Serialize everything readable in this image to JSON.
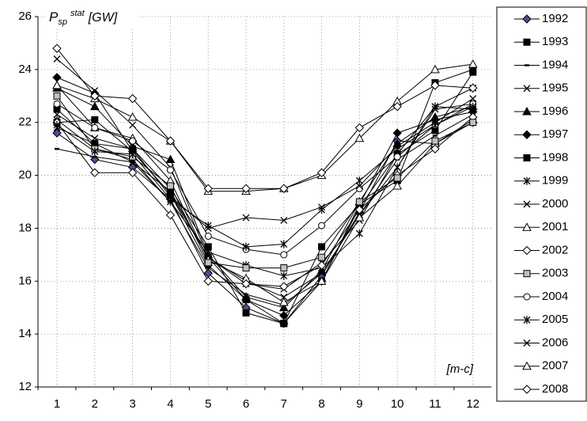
{
  "chart_data": {
    "type": "line",
    "ylabel": {
      "symbol": "P",
      "subscript": "sp",
      "superscript": "stat",
      "unit": "[GW]"
    },
    "annotation": "[m-c]",
    "categories": [
      "1",
      "2",
      "3",
      "4",
      "5",
      "6",
      "7",
      "8",
      "9",
      "10",
      "11",
      "12"
    ],
    "ylim": [
      12,
      26
    ],
    "yticks": [
      12,
      14,
      16,
      18,
      20,
      22,
      24,
      26
    ],
    "grid": true,
    "legend": "right",
    "series": [
      {
        "name": "1992",
        "color": "#000000",
        "marker": "diamond",
        "marker_fill": "#4d4d99",
        "values": [
          21.6,
          20.6,
          20.3,
          19.1,
          16.3,
          15.0,
          14.4,
          16.2,
          18.6,
          21.3,
          21.2,
          22.0
        ]
      },
      {
        "name": "1993",
        "color": "#000000",
        "marker": "square",
        "marker_fill": "#000000",
        "values": [
          22.0,
          22.1,
          20.9,
          19.3,
          16.9,
          15.3,
          14.4,
          16.0,
          18.8,
          20.8,
          21.7,
          23.9
        ]
      },
      {
        "name": "1994",
        "color": "#000000",
        "marker": "dash",
        "marker_fill": "#000000",
        "values": [
          21.0,
          20.7,
          20.5,
          19.0,
          16.5,
          15.5,
          15.1,
          16.3,
          18.5,
          20.6,
          21.5,
          22.3
        ]
      },
      {
        "name": "1995",
        "color": "#000000",
        "marker": "x",
        "marker_fill": "#000000",
        "values": [
          24.4,
          23.2,
          21.9,
          20.3,
          16.9,
          15.9,
          15.7,
          16.7,
          18.3,
          20.8,
          22.6,
          23.3
        ]
      },
      {
        "name": "1996",
        "color": "#000000",
        "marker": "triangle",
        "marker_fill": "#000000",
        "values": [
          23.3,
          22.6,
          21.1,
          20.6,
          17.0,
          15.4,
          15.0,
          16.4,
          19.0,
          21.2,
          22.2,
          22.6
        ]
      },
      {
        "name": "1997",
        "color": "#000000",
        "marker": "diamond",
        "marker_fill": "#000000",
        "values": [
          23.7,
          23.1,
          20.9,
          19.3,
          16.6,
          15.3,
          14.7,
          16.0,
          18.9,
          21.6,
          22.1,
          22.4
        ]
      },
      {
        "name": "1998",
        "color": "#000000",
        "marker": "square",
        "marker_fill": "#000000",
        "values": [
          22.5,
          21.2,
          21.0,
          19.5,
          17.3,
          14.8,
          14.4,
          17.3,
          18.9,
          19.8,
          23.5,
          24.0
        ]
      },
      {
        "name": "1999",
        "color": "#000000",
        "marker": "star",
        "marker_fill": "#000000",
        "values": [
          22.1,
          21.0,
          20.6,
          19.0,
          17.1,
          16.6,
          16.2,
          16.5,
          17.8,
          20.3,
          22.6,
          22.5
        ]
      },
      {
        "name": "2000",
        "color": "#000000",
        "marker": "x",
        "marker_fill": "#000000",
        "values": [
          21.8,
          21.2,
          20.5,
          19.4,
          16.9,
          16.0,
          15.4,
          16.3,
          18.5,
          20.3,
          22.5,
          22.7
        ]
      },
      {
        "name": "2001",
        "color": "#000000",
        "marker": "triangle",
        "marker_fill": "#ffffff",
        "values": [
          23.4,
          21.8,
          21.4,
          19.8,
          16.8,
          16.1,
          15.2,
          16.0,
          18.4,
          19.6,
          21.2,
          22.1
        ]
      },
      {
        "name": "2002",
        "color": "#000000",
        "marker": "diamond",
        "marker_fill": "#ffffff",
        "values": [
          22.0,
          20.1,
          20.1,
          18.5,
          16.0,
          15.9,
          15.8,
          16.6,
          18.7,
          20.0,
          21.0,
          22.2
        ]
      },
      {
        "name": "2003",
        "color": "#000000",
        "marker": "square",
        "marker_fill": "#c0c0c0",
        "values": [
          23.0,
          21.0,
          20.7,
          19.6,
          16.7,
          16.5,
          16.5,
          16.9,
          19.0,
          19.9,
          21.3,
          22.0
        ]
      },
      {
        "name": "2004",
        "color": "#000000",
        "marker": "circle",
        "marker_fill": "#ffffff",
        "values": [
          22.7,
          21.8,
          21.3,
          20.2,
          17.7,
          17.2,
          17.0,
          18.1,
          19.5,
          20.7,
          21.9,
          22.7
        ]
      },
      {
        "name": "2005",
        "color": "#000000",
        "marker": "star",
        "marker_fill": "#000000",
        "values": [
          21.9,
          20.9,
          20.8,
          19.1,
          18.1,
          17.3,
          17.4,
          18.7,
          19.8,
          21.0,
          21.9,
          22.6
        ]
      },
      {
        "name": "2006",
        "color": "#000000",
        "marker": "x",
        "marker_fill": "#000000",
        "values": [
          22.3,
          21.4,
          21.0,
          19.2,
          18.0,
          18.4,
          18.3,
          18.8,
          19.6,
          21.1,
          22.0,
          22.9
        ]
      },
      {
        "name": "2007",
        "color": "#000000",
        "marker": "triangle",
        "marker_fill": "#ffffff",
        "values": [
          23.4,
          22.9,
          22.2,
          21.3,
          19.4,
          19.4,
          19.5,
          20.0,
          21.4,
          22.8,
          24.0,
          24.2
        ]
      },
      {
        "name": "2008",
        "color": "#000000",
        "marker": "diamond",
        "marker_fill": "#ffffff",
        "values": [
          24.8,
          23.0,
          22.9,
          21.3,
          19.5,
          19.5,
          19.5,
          20.1,
          21.8,
          22.6,
          23.4,
          23.3
        ]
      }
    ]
  }
}
